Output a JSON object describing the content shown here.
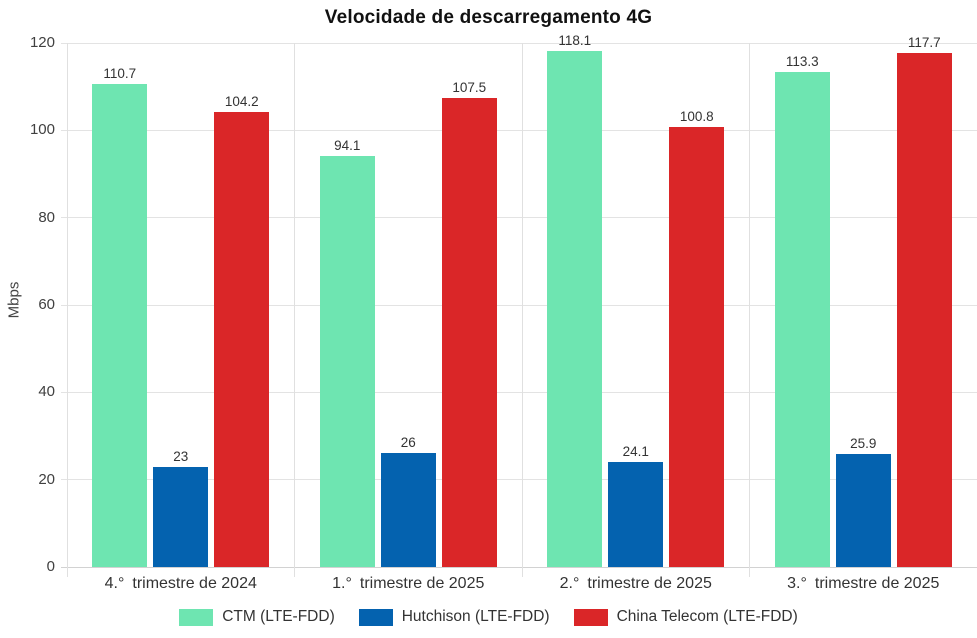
{
  "chart_data": {
    "type": "bar",
    "title": "Velocidade de descarregamento 4G",
    "xlabel": "",
    "ylabel": "Mbps",
    "categories": [
      "4.° trimestre de 2024",
      "1.° trimestre de 2025",
      "2.° trimestre de 2025",
      "3.° trimestre de 2025"
    ],
    "series": [
      {
        "name": "CTM (LTE-FDD)",
        "color": "#6ee5b1",
        "values": [
          110.7,
          94.1,
          118.1,
          113.3
        ]
      },
      {
        "name": "Hutchison (LTE-FDD)",
        "color": "#0462af",
        "values": [
          23,
          26,
          24.1,
          25.9
        ]
      },
      {
        "name": "China Telecom (LTE-FDD)",
        "color": "#da2628",
        "values": [
          104.2,
          107.5,
          100.8,
          117.7
        ]
      }
    ],
    "ylim": [
      0,
      120
    ],
    "yticks": [
      0,
      20,
      40,
      60,
      80,
      100,
      120
    ],
    "grid": true,
    "legend_position": "bottom"
  }
}
